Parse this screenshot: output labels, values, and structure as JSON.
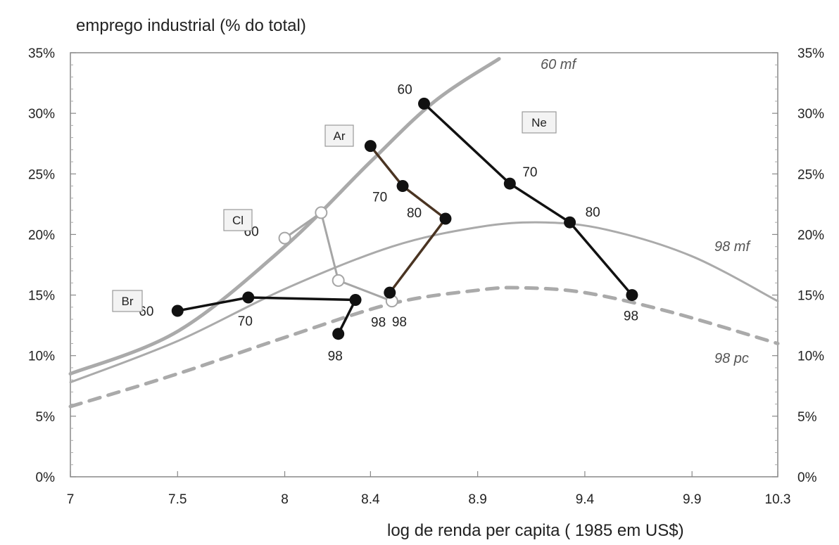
{
  "chart_data": {
    "type": "line",
    "title": "",
    "ylabel": "emprego industrial (% do total)",
    "xlabel": "log de renda per capita ( 1985 em US$)",
    "xlim": [
      7,
      10.3
    ],
    "ylim": [
      0,
      35
    ],
    "x_ticks": [
      "7",
      "7.5",
      "8",
      "8.4",
      "8.9",
      "9.4",
      "9.9",
      "10.3"
    ],
    "x_tick_values": [
      7,
      7.5,
      8,
      8.4,
      8.9,
      9.4,
      9.9,
      10.3
    ],
    "y_ticks": [
      "0%",
      "5%",
      "10%",
      "15%",
      "20%",
      "25%",
      "30%",
      "35%"
    ],
    "y_tick_values": [
      0,
      5,
      10,
      15,
      20,
      25,
      30,
      35
    ],
    "reference_curves": [
      {
        "name": "60 mf",
        "style": "thick-solid",
        "color": "#aaaaaa",
        "points": [
          [
            7,
            8.5
          ],
          [
            7.5,
            12.0
          ],
          [
            8,
            19.0
          ],
          [
            8.4,
            26.0
          ],
          [
            8.7,
            31.0
          ],
          [
            9.0,
            34.5
          ]
        ]
      },
      {
        "name": "98 mf",
        "style": "solid",
        "color": "#aaaaaa",
        "points": [
          [
            7,
            7.8
          ],
          [
            7.5,
            11.2
          ],
          [
            8,
            15.5
          ],
          [
            8.5,
            19.0
          ],
          [
            8.9,
            20.6
          ],
          [
            9.2,
            21.0
          ],
          [
            9.5,
            20.4
          ],
          [
            9.9,
            18.2
          ],
          [
            10.3,
            14.5
          ]
        ]
      },
      {
        "name": "98 pc",
        "style": "dashed",
        "color": "#aaaaaa",
        "points": [
          [
            7,
            5.8
          ],
          [
            7.5,
            8.5
          ],
          [
            8,
            11.5
          ],
          [
            8.5,
            14.3
          ],
          [
            8.9,
            15.4
          ],
          [
            9.1,
            15.6
          ],
          [
            9.4,
            15.2
          ],
          [
            9.8,
            13.6
          ],
          [
            10.3,
            11.0
          ]
        ]
      }
    ],
    "series": [
      {
        "name": "Br",
        "color": "#111111",
        "line": "#111111",
        "marker": "filled",
        "points": [
          {
            "x": 7.5,
            "y": 13.7,
            "label": "60"
          },
          {
            "x": 7.83,
            "y": 14.8,
            "label": "70"
          },
          {
            "x": 8.33,
            "y": 14.6,
            "label": "98"
          },
          {
            "x": 8.25,
            "y": 11.8,
            "label": "98"
          }
        ]
      },
      {
        "name": "Cl",
        "color": "#ffffff",
        "line": "#a6a6a6",
        "marker": "open",
        "points": [
          {
            "x": 8.0,
            "y": 19.7,
            "label": "60"
          },
          {
            "x": 8.17,
            "y": 21.8,
            "label": ""
          },
          {
            "x": 8.25,
            "y": 16.2,
            "label": ""
          },
          {
            "x": 8.5,
            "y": 14.5,
            "label": "98"
          }
        ]
      },
      {
        "name": "Ar",
        "color": "#111111",
        "line": "#4a3422",
        "marker": "filled",
        "points": [
          {
            "x": 8.4,
            "y": 27.3,
            "label": "60"
          },
          {
            "x": 8.55,
            "y": 24.0,
            "label": "70"
          },
          {
            "x": 8.75,
            "y": 21.3,
            "label": "80"
          },
          {
            "x": 8.49,
            "y": 15.2,
            "label": ""
          }
        ]
      },
      {
        "name": "Ne",
        "color": "#111111",
        "line": "#111111",
        "marker": "filled",
        "points": [
          {
            "x": 8.65,
            "y": 30.8,
            "label": "60"
          },
          {
            "x": 9.05,
            "y": 24.2,
            "label": "70"
          },
          {
            "x": 9.33,
            "y": 21.0,
            "label": "80"
          },
          {
            "x": 9.62,
            "y": 15.0,
            "label": "98"
          }
        ]
      }
    ]
  }
}
